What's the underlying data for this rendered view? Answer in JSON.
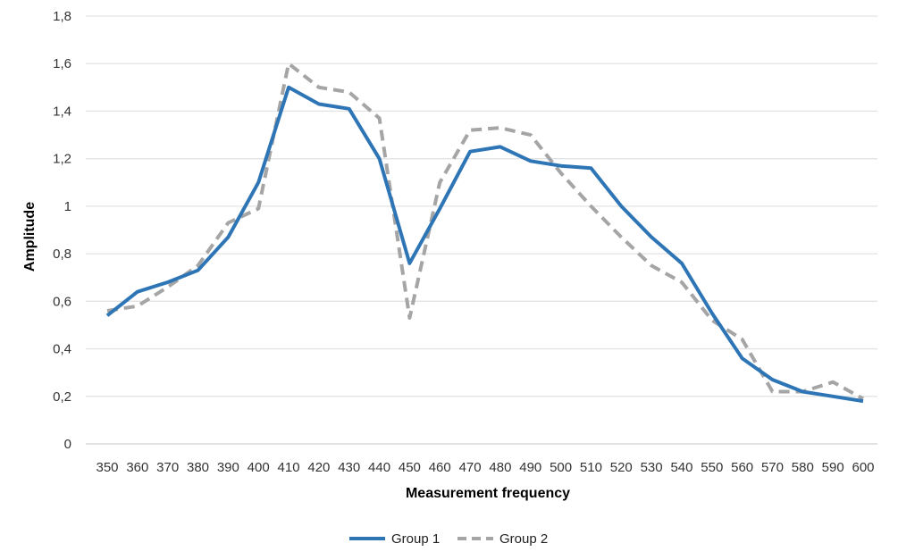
{
  "chart_data": {
    "type": "line",
    "title": "",
    "xlabel": "Measurement frequency",
    "ylabel": "Amplitude",
    "ylim": [
      0,
      1.8
    ],
    "yticks": [
      "0",
      "0,2",
      "0,4",
      "0,6",
      "0,8",
      "1",
      "1,2",
      "1,4",
      "1,6",
      "1,8"
    ],
    "x": [
      350,
      360,
      370,
      380,
      390,
      400,
      410,
      420,
      430,
      440,
      450,
      460,
      470,
      480,
      490,
      500,
      510,
      520,
      530,
      540,
      550,
      560,
      570,
      580,
      590,
      600
    ],
    "grid": true,
    "legend_position": "bottom",
    "series": [
      {
        "name": "Group 1",
        "color": "#2e75b6",
        "style": "solid",
        "values": [
          0.54,
          0.64,
          0.68,
          0.73,
          0.87,
          1.1,
          1.5,
          1.43,
          1.41,
          1.2,
          0.76,
          0.99,
          1.23,
          1.25,
          1.19,
          1.17,
          1.16,
          1.0,
          0.87,
          0.76,
          0.55,
          0.36,
          0.27,
          0.22,
          0.2,
          0.18
        ]
      },
      {
        "name": "Group 2",
        "color": "#a5a5a5",
        "style": "dashed",
        "values": [
          0.56,
          0.58,
          0.66,
          0.75,
          0.93,
          0.99,
          1.6,
          1.5,
          1.48,
          1.37,
          0.53,
          1.1,
          1.32,
          1.33,
          1.3,
          1.14,
          1.0,
          0.87,
          0.75,
          0.68,
          0.52,
          0.44,
          0.22,
          0.22,
          0.26,
          0.19
        ]
      }
    ]
  }
}
